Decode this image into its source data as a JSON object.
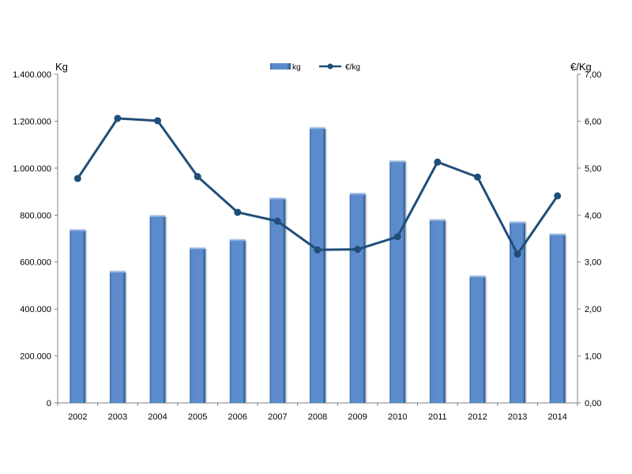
{
  "chart_data": {
    "type": "bar",
    "categories": [
      "2002",
      "2003",
      "2004",
      "2005",
      "2006",
      "2007",
      "2008",
      "2009",
      "2010",
      "2011",
      "2012",
      "2013",
      "2014"
    ],
    "series": [
      {
        "name": "kg",
        "type": "bar",
        "axis": "left",
        "color": "#4F81BD",
        "values": [
          740000,
          563000,
          800000,
          663000,
          698000,
          875000,
          1175000,
          895000,
          1033000,
          783000,
          543000,
          773000,
          722000
        ]
      },
      {
        "name": "€/kg",
        "type": "line",
        "axis": "right",
        "color": "#1F4E79",
        "values": [
          4.78,
          6.06,
          6.01,
          4.82,
          4.06,
          3.87,
          3.26,
          3.27,
          3.54,
          5.13,
          4.81,
          3.17,
          4.41
        ]
      }
    ],
    "y_left": {
      "label": "Kg",
      "range": [
        0,
        1400000
      ],
      "ticks": [
        "0",
        "200.000",
        "400.000",
        "600.000",
        "800.000",
        "1.000.000",
        "1.200.000",
        "1.400.000"
      ]
    },
    "y_right": {
      "label": "€/Kg",
      "range": [
        0,
        7
      ],
      "ticks": [
        "0,00",
        "1,00",
        "2,00",
        "3,00",
        "4,00",
        "5,00",
        "6,00",
        "7,00"
      ]
    },
    "legend": {
      "position": "top-center",
      "entries": [
        "kg",
        "€/kg"
      ]
    },
    "grid": false
  }
}
